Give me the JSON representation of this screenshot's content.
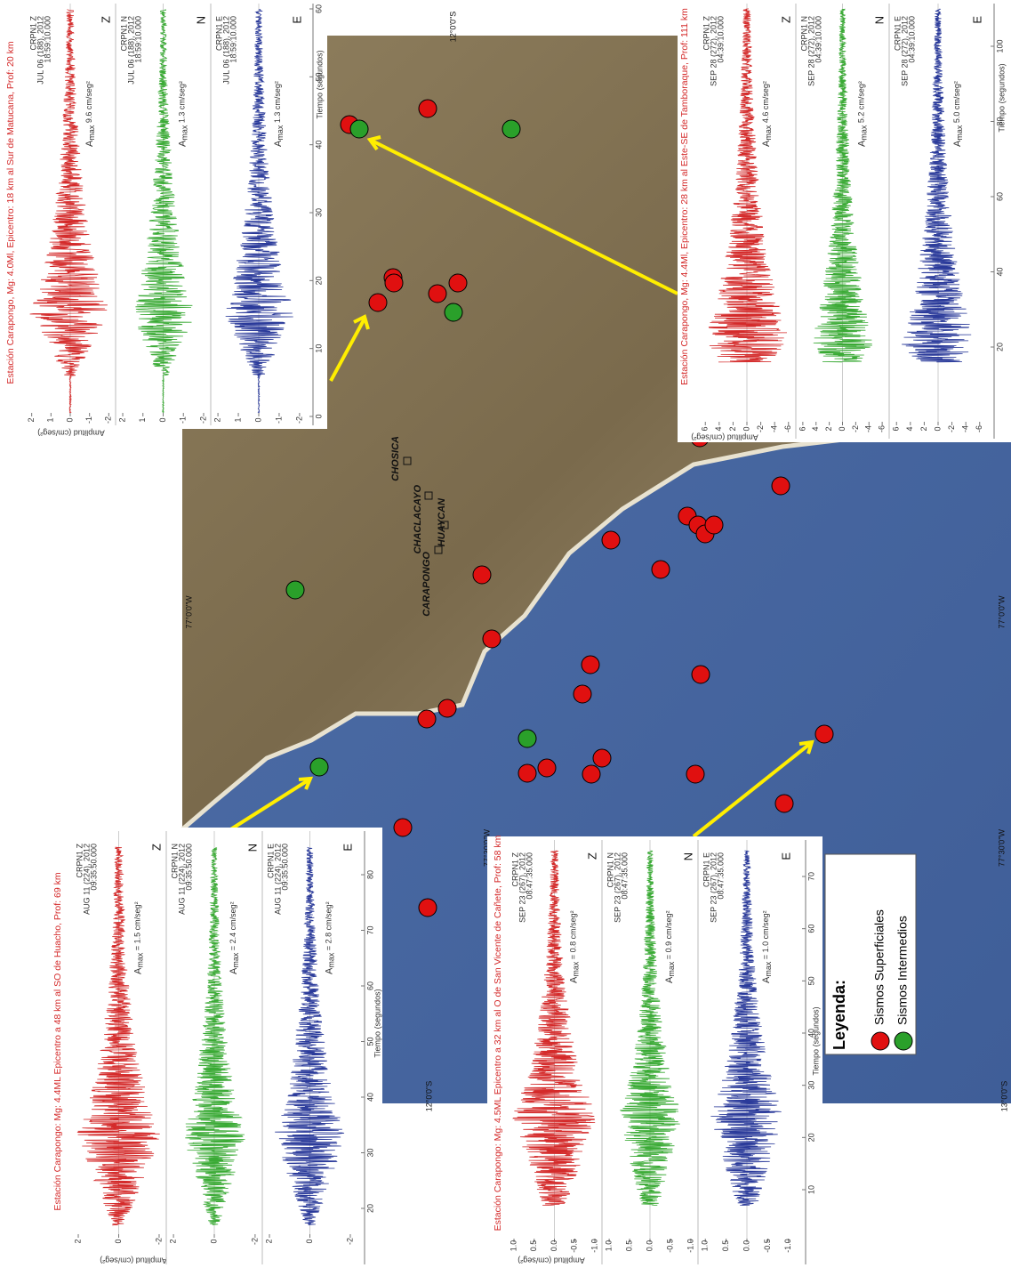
{
  "map": {
    "cities": [
      "CHOSICA",
      "CHACLACAYO",
      "HUAYCAN",
      "CARAPONGO"
    ],
    "coords": [
      "12°0'0\"S",
      "12°0'0\"S",
      "13°0'0\"S",
      "77°0'0\"W",
      "77°0'0\"W",
      "77°30'0\"W",
      "77°30'0\"W"
    ]
  },
  "legend": {
    "title": "Leyenda:",
    "items": [
      "Sismos Superficiales",
      "Sismos Intermedios"
    ]
  },
  "amax_symbol": "A",
  "amax_sub": "max",
  "panels": [
    {
      "title": "Estación Carapongo, Mg: 4.0Ml, Epicentro: 18 km al Sur de Matucana, Prof: 20 km",
      "xlabel": "Tiempo (segundos)",
      "ylabel": "Amplitud (cm/seg²)",
      "time_ticks": [
        0,
        10,
        20,
        30,
        40,
        50,
        60
      ],
      "amp_ticks": [
        2,
        1,
        0,
        -1,
        -2
      ],
      "channels": [
        {
          "component": "Z",
          "header": [
            "CRPN1  Z",
            "JUL 06 (188), 2012",
            "18:59:10.000"
          ],
          "amax": "9.6 cm/seg²"
        },
        {
          "component": "N",
          "header": [
            "CRPN1  N",
            "JUL 06 (188), 2012",
            "18:59:10.000"
          ],
          "amax": "1.3 cm/seg²"
        },
        {
          "component": "E",
          "header": [
            "CRPN1  E",
            "JUL 06 (188), 2012",
            "18:59:10.000"
          ],
          "amax": "1.3 cm/seg²"
        }
      ]
    },
    {
      "title": "Estación Carapongo, Mg: 4.4Ml, Epicentro: 28 km al Este-SE de Tamboraque, Prof: 111 km",
      "xlabel": "Tiempo (segundos)",
      "ylabel": "Amplitud (cm/seg²)",
      "time_ticks": [
        20,
        40,
        60,
        80,
        100
      ],
      "amp_ticks": [
        6,
        4,
        2,
        0,
        -2,
        -4,
        -6
      ],
      "channels": [
        {
          "component": "Z",
          "header": [
            "CRPN1  Z",
            "SEP 28 (272), 2012",
            "04:39:10.000"
          ],
          "amax": "4.6 cm/seg²"
        },
        {
          "component": "N",
          "header": [
            "CRPN1  N",
            "SEP 28 (272), 2012",
            "04:39:10.000"
          ],
          "amax": "5.2 cm/seg²"
        },
        {
          "component": "E",
          "header": [
            "CRPN1  E",
            "SEP 28 (272), 2012",
            "04:39:10.000"
          ],
          "amax": "5.0 cm/seg²"
        }
      ]
    },
    {
      "title": "Estación Carapongo: Mg: 4.4ML Epicentro a 48 km al SO de Huacho, Prof: 69 km",
      "xlabel": "Tiempo (segundos)",
      "ylabel": "Amplitud (cm/seg²)",
      "time_ticks": [
        20,
        30,
        40,
        50,
        60,
        70,
        80
      ],
      "amp_ticks": [
        2,
        0,
        -2
      ],
      "channels": [
        {
          "component": "Z",
          "header": [
            "CRPN1  Z",
            "AUG 11 (224), 2012",
            "09:35:50.000"
          ],
          "amax": "= 1.5 cm/seg²"
        },
        {
          "component": "N",
          "header": [
            "CRPN1  N",
            "AUG 11 (224), 2012",
            "09:35:50.000"
          ],
          "amax": "= 2.4 cm/seg²"
        },
        {
          "component": "E",
          "header": [
            "CRPN1  E",
            "AUG 11 (224), 2012",
            "09:35:50.000"
          ],
          "amax": "= 2.8 cm/seg²"
        }
      ]
    },
    {
      "title": "Estación Carapongo: Mg: 4.5ML Epicentro a 32 km al O de San Vicente de Cañete, Prof: 58 km",
      "xlabel": "Tiempo (segundos)",
      "ylabel": "Amplitud (cm/seg²)",
      "time_ticks": [
        10,
        20,
        30,
        40,
        50,
        60,
        70
      ],
      "amp_ticks": [
        {
          "value": 1,
          "label": "1.0"
        },
        {
          "value": 0.5,
          "label": "0.5"
        },
        {
          "value": 0,
          "label": "0.0"
        },
        {
          "value": -0.5,
          "label": "-0.5"
        },
        {
          "value": -1,
          "label": "-1.0"
        }
      ],
      "channels": [
        {
          "component": "Z",
          "header": [
            "CRPN1  Z",
            "SEP 23 (267), 2012",
            "08:47:35.000"
          ],
          "amax": "= 0.8 cm/seg²"
        },
        {
          "component": "N",
          "header": [
            "CRPN1  N",
            "SEP 23 (267), 2012",
            "08:47:35.000"
          ],
          "amax": "= 0.9 cm/seg²"
        },
        {
          "component": "E",
          "header": [
            "CRPN1  E",
            "SEP 23 (267), 2012",
            "08:47:35.000"
          ],
          "amax": "= 1.0 cm/seg²"
        }
      ]
    }
  ]
}
